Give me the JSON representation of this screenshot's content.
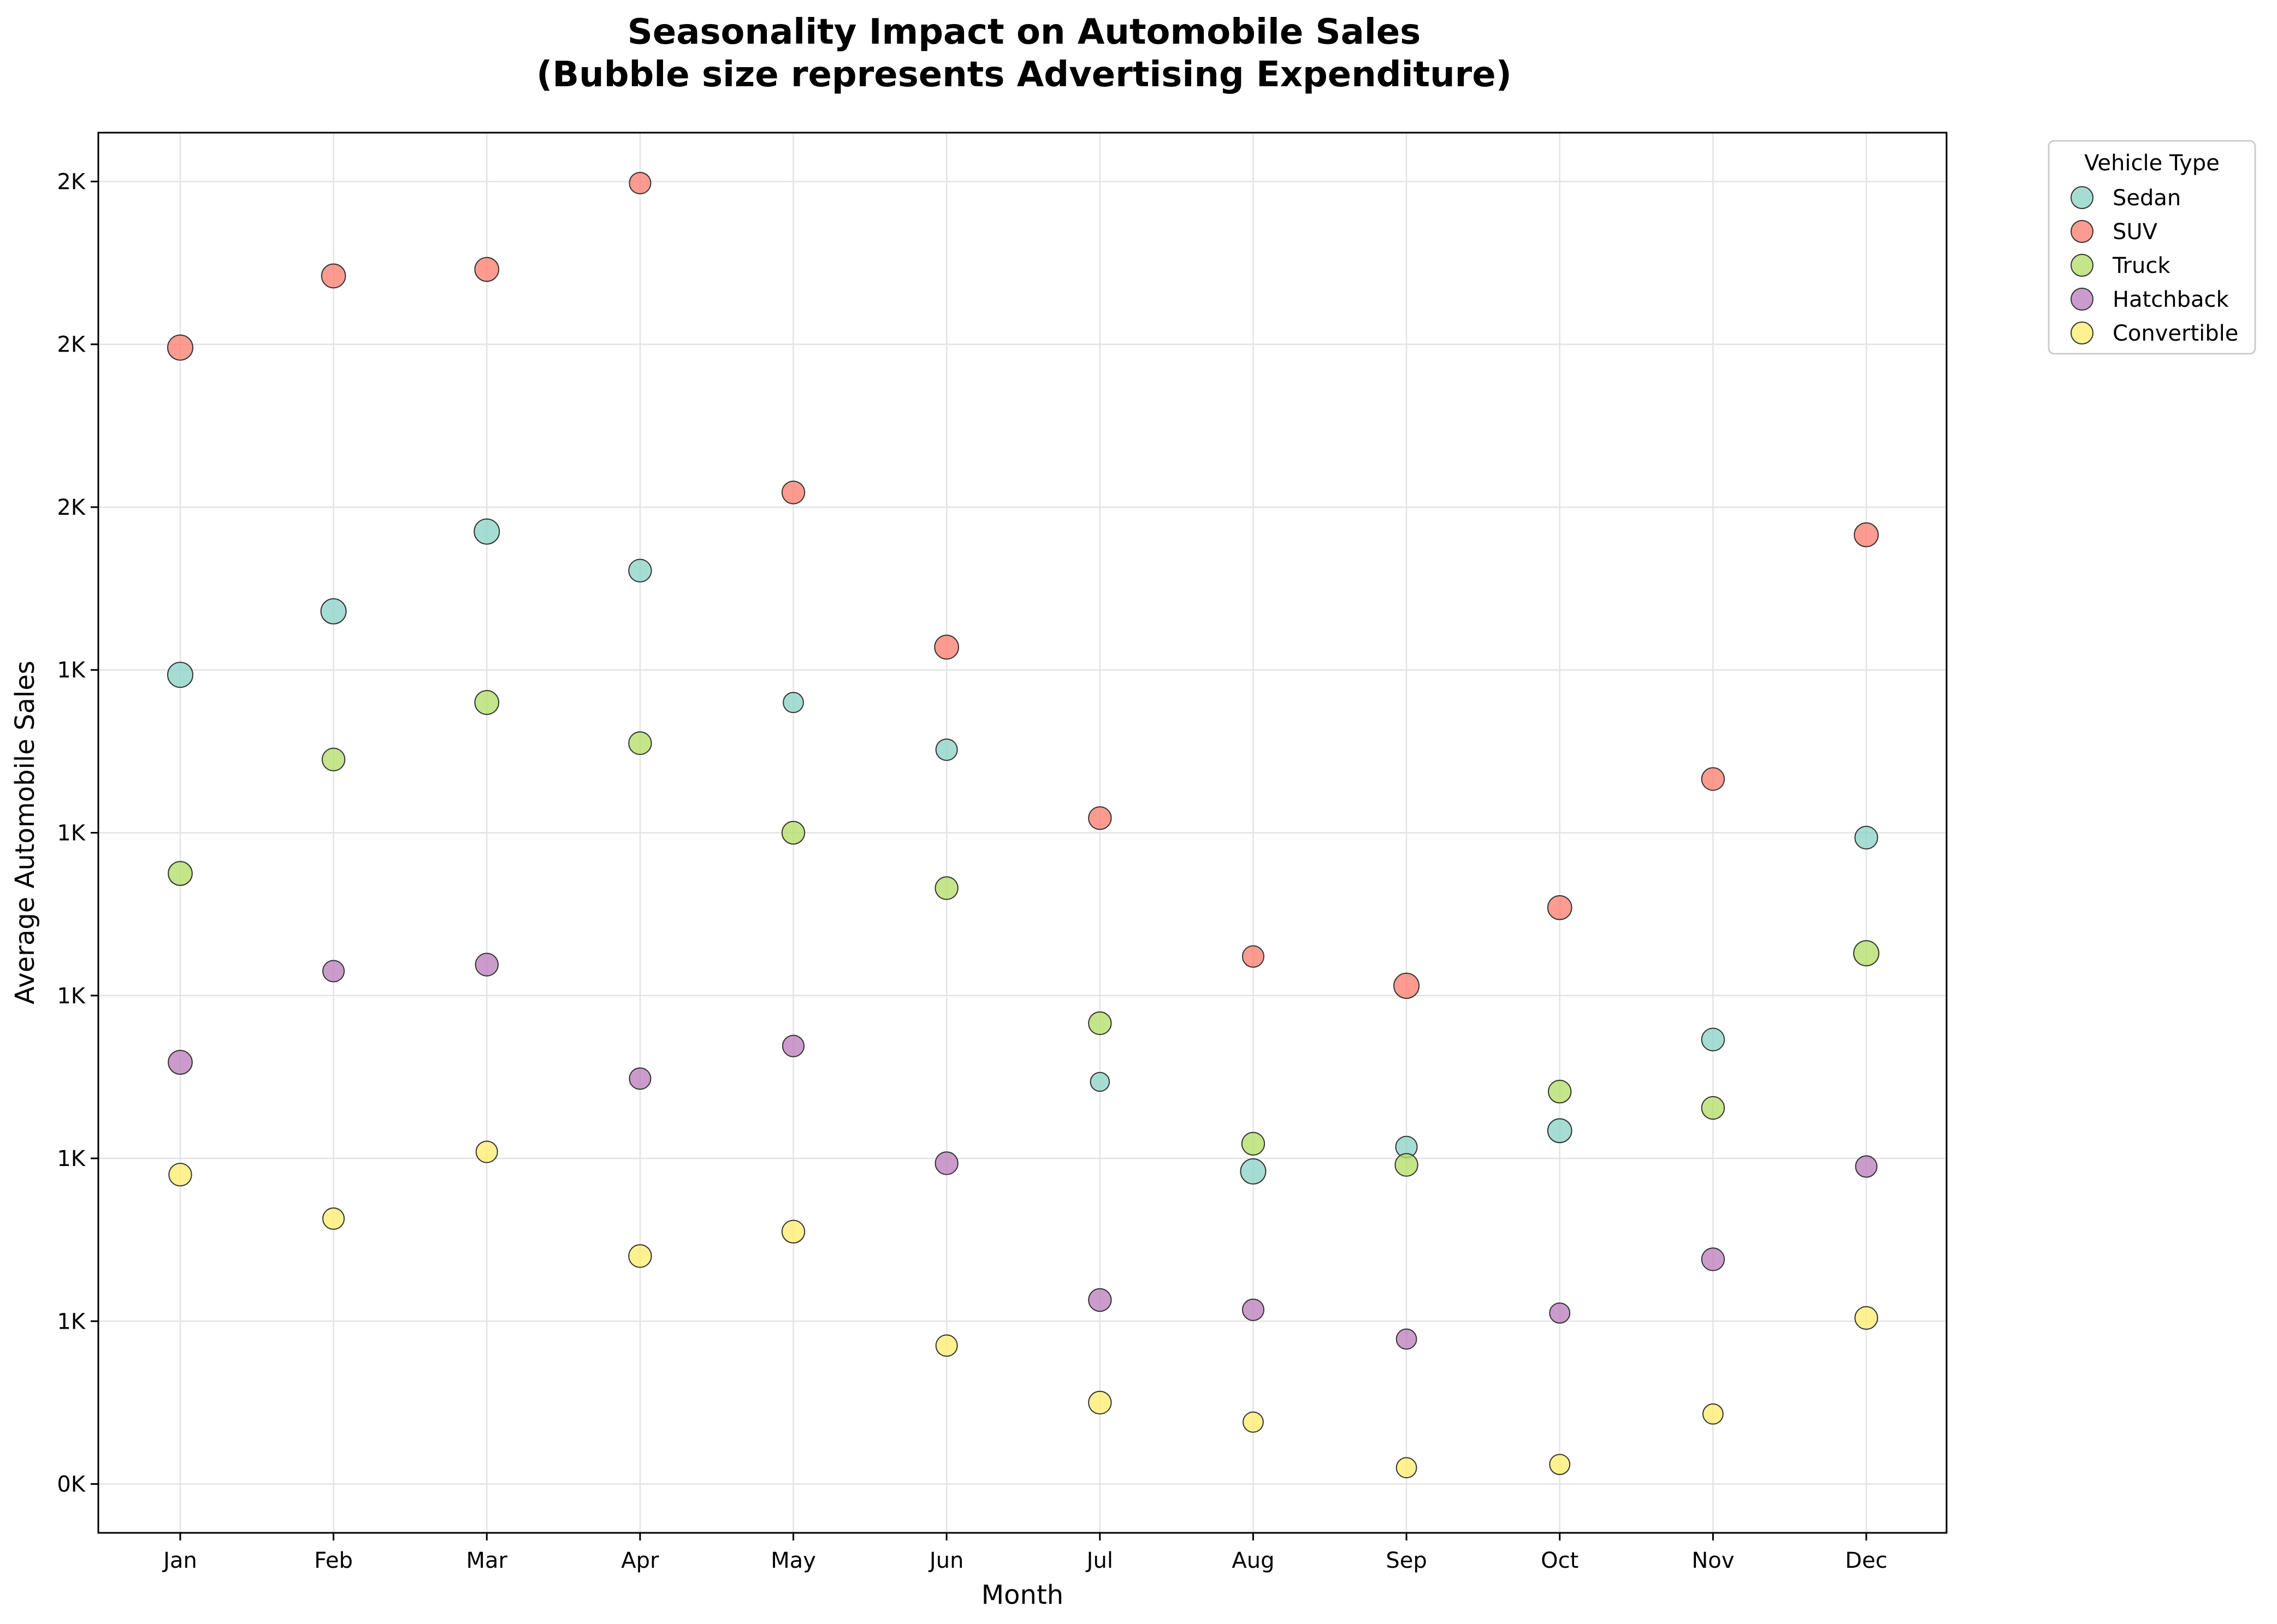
{
  "chart_data": {
    "type": "scatter",
    "title": [
      "Seasonality Impact on Automobile Sales",
      "(Bubble size represents Advertising Expenditure)"
    ],
    "xlabel": "Month",
    "ylabel": "Average Automobile Sales",
    "categories": [
      "Jan",
      "Feb",
      "Mar",
      "Apr",
      "May",
      "Jun",
      "Jul",
      "Aug",
      "Sep",
      "Oct",
      "Nov",
      "Dec"
    ],
    "ylim": [
      -0.3,
      8.3
    ],
    "y_ticks": [
      0,
      1,
      2,
      3,
      4,
      5,
      6,
      7,
      8
    ],
    "y_tick_labels": [
      "0K",
      "1K",
      "1K",
      "1K",
      "1K",
      "1K",
      "2K",
      "2K",
      "2K"
    ],
    "grid": true,
    "legend": {
      "title": "Vehicle Type",
      "position": "outside-top-right"
    },
    "series": [
      {
        "name": "Sedan",
        "color": "#8dd3c7",
        "values": [
          4.97,
          5.36,
          5.85,
          5.61,
          4.8,
          4.51,
          2.47,
          1.92,
          2.07,
          2.17,
          2.73,
          3.97
        ],
        "sizes": [
          1.0,
          1.0,
          1.0,
          0.9,
          0.8,
          0.85,
          0.75,
          1.0,
          0.85,
          0.95,
          0.9,
          0.9
        ]
      },
      {
        "name": "SUV",
        "color": "#fb8072",
        "values": [
          6.98,
          7.42,
          7.46,
          7.99,
          6.09,
          5.14,
          4.09,
          3.24,
          3.06,
          3.54,
          4.33,
          5.83
        ],
        "sizes": [
          1.0,
          0.95,
          0.95,
          0.85,
          0.9,
          0.95,
          0.9,
          0.85,
          1.0,
          0.95,
          0.9,
          0.95
        ]
      },
      {
        "name": "Truck",
        "color": "#b3de69",
        "values": [
          3.75,
          4.45,
          4.8,
          4.55,
          4.0,
          3.66,
          2.83,
          2.09,
          1.96,
          2.41,
          2.31,
          3.26
        ],
        "sizes": [
          0.95,
          0.9,
          0.95,
          0.9,
          0.9,
          0.9,
          0.9,
          0.9,
          0.9,
          0.9,
          0.9,
          1.0
        ]
      },
      {
        "name": "Hatchback",
        "color": "#bc80bd",
        "values": [
          2.59,
          3.15,
          3.19,
          2.49,
          2.69,
          1.97,
          1.13,
          1.07,
          0.89,
          1.05,
          1.38,
          1.95
        ],
        "sizes": [
          0.95,
          0.85,
          0.9,
          0.85,
          0.85,
          0.9,
          0.9,
          0.85,
          0.8,
          0.8,
          0.9,
          0.85
        ]
      },
      {
        "name": "Convertible",
        "color": "#ffed6f",
        "values": [
          1.9,
          1.63,
          2.04,
          1.4,
          1.55,
          0.85,
          0.5,
          0.38,
          0.1,
          0.12,
          0.43,
          1.02
        ],
        "sizes": [
          0.9,
          0.85,
          0.85,
          0.9,
          0.9,
          0.85,
          0.9,
          0.8,
          0.8,
          0.8,
          0.8,
          0.9
        ]
      }
    ]
  }
}
